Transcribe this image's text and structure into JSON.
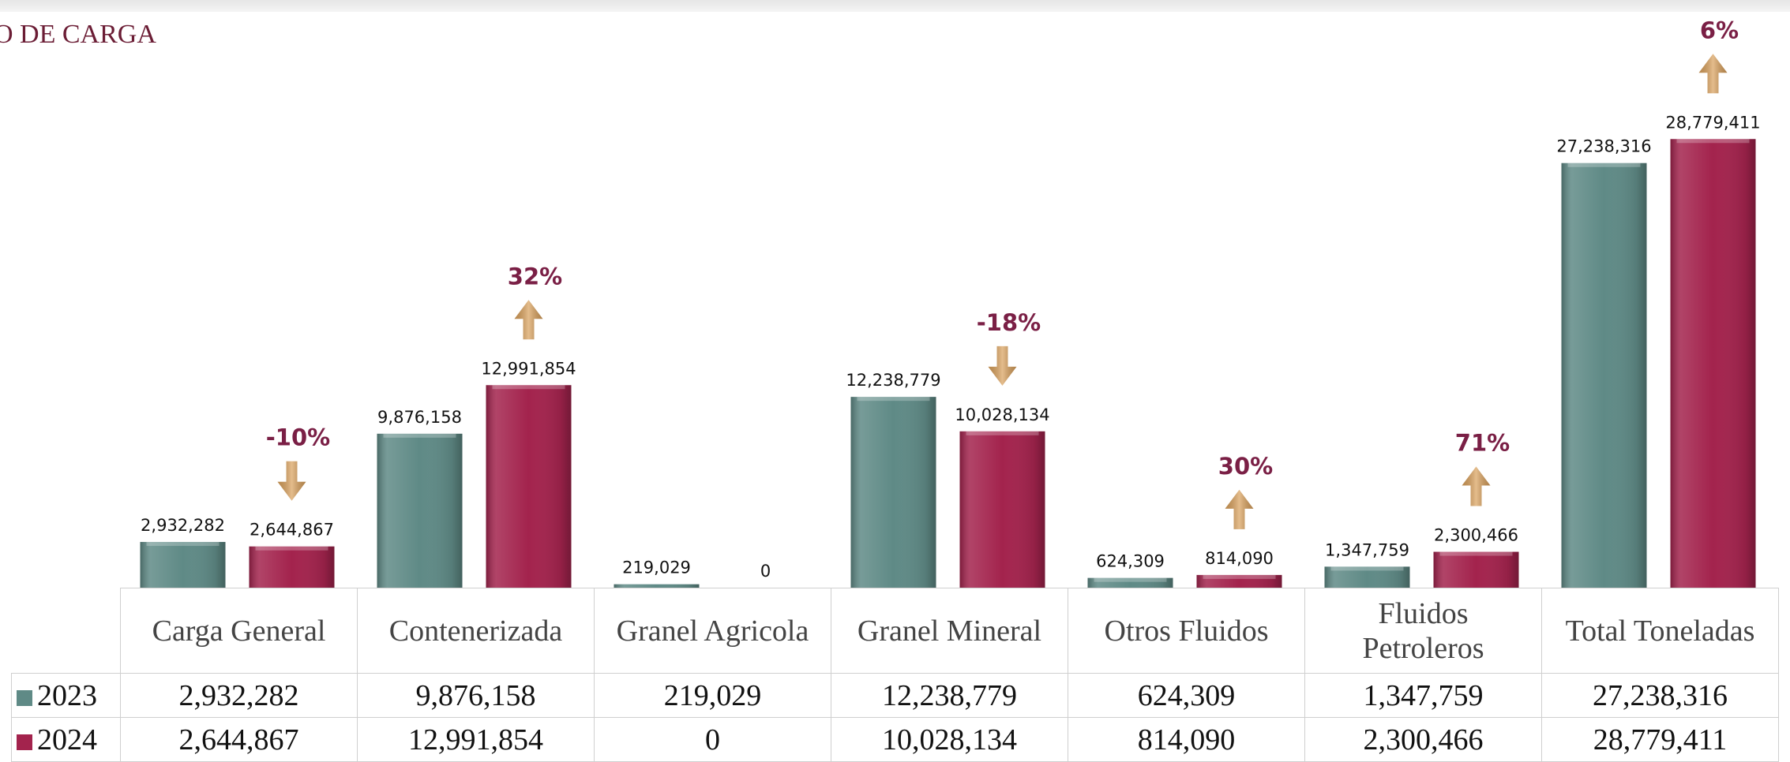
{
  "chart_data": {
    "type": "bar",
    "title": "O DE CARGA",
    "categories": [
      "Carga General",
      "Contenerizada",
      "Granel Agricola",
      "Granel Mineral",
      "Otros Fluidos",
      "Fluidos Petroleros",
      "Total Toneladas"
    ],
    "series": [
      {
        "name": "2023",
        "color": "#5f8a86",
        "values": [
          2932282,
          9876158,
          219029,
          12238779,
          624309,
          1347759,
          27238316
        ],
        "value_labels": [
          "2,932,282",
          "9,876,158",
          "219,029",
          "12,238,779",
          "624,309",
          "1,347,759",
          "27,238,316"
        ]
      },
      {
        "name": "2024",
        "color": "#a3234d",
        "values": [
          2644867,
          12991854,
          0,
          10028134,
          814090,
          2300466,
          28779411
        ],
        "value_labels": [
          "2,644,867",
          "12,991,854",
          "0",
          "10,028,134",
          "814,090",
          "2,300,466",
          "28,779,411"
        ]
      }
    ],
    "changes": {
      "color": "#d9a05b",
      "values": [
        -10,
        32,
        null,
        -18,
        30,
        71,
        6
      ],
      "value_labels": [
        "-10%",
        "32%",
        null,
        "-18%",
        "30%",
        "71%",
        "6%"
      ]
    },
    "ylim": [
      0,
      37700000
    ]
  }
}
